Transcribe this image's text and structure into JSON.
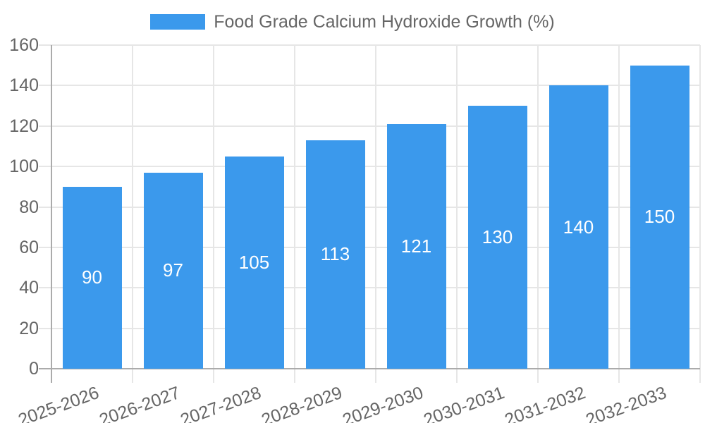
{
  "chart_data": {
    "type": "bar",
    "title": "",
    "legend_label": "Food Grade Calcium Hydroxide Growth (%)",
    "legend_position": "top",
    "categories": [
      "2025-2026",
      "2026-2027",
      "2027-2028",
      "2028-2029",
      "2029-2030",
      "2030-2031",
      "2031-2032",
      "2032-2033"
    ],
    "values": [
      90,
      97,
      105,
      113,
      121,
      130,
      140,
      150
    ],
    "yticks": [
      0,
      20,
      40,
      60,
      80,
      100,
      120,
      140,
      160
    ],
    "ylim": [
      0,
      160
    ],
    "xlabel": "",
    "ylabel": "",
    "grid": true,
    "bar_value_labels_shown": true,
    "colors": {
      "bar": "#3B99EC",
      "bar_label": "#FFFFFF",
      "axis_text": "#666666",
      "grid_line": "#E6E6E6",
      "axis_line": "#ABABAB",
      "background": "#FFFFFF"
    }
  }
}
